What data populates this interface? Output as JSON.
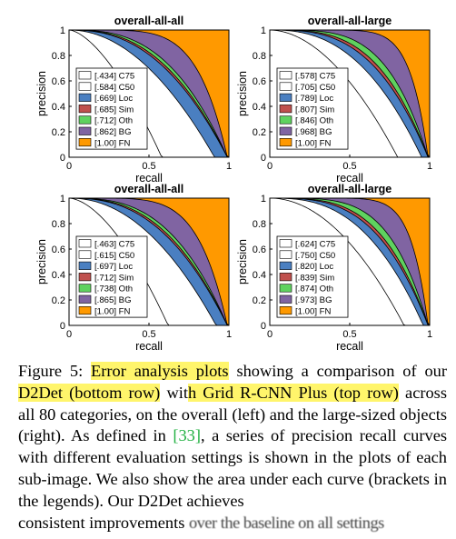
{
  "chart_data": [
    {
      "type": "area",
      "title": "overall-all-all",
      "xlabel": "recall",
      "ylabel": "precision",
      "xlim": [
        0,
        1
      ],
      "ylim": [
        0,
        1
      ],
      "xticks": [
        "0",
        "0.5",
        "1"
      ],
      "yticks": [
        "0",
        "0.2",
        "0.4",
        "0.6",
        "0.8",
        "1"
      ],
      "legend_position": "left-middle",
      "series": [
        {
          "name": "[.434] C75",
          "value": 0.434,
          "color": "#ffffff",
          "recall_end": 0.58,
          "shape": 1.6
        },
        {
          "name": "[.584] C50",
          "value": 0.584,
          "color": "#ffffff",
          "recall_end": 0.91,
          "shape": 2.0
        },
        {
          "name": "[.669] Loc",
          "value": 0.669,
          "color": "#4a7fc1",
          "recall_end": 0.99,
          "shape": 2.4
        },
        {
          "name": "[.685] Sim",
          "value": 0.685,
          "color": "#c0504d",
          "recall_end": 0.99,
          "shape": 2.55
        },
        {
          "name": "[.712] Oth",
          "value": 0.712,
          "color": "#5fd25f",
          "recall_end": 0.99,
          "shape": 2.8
        },
        {
          "name": "[.862] BG",
          "value": 0.862,
          "color": "#8064a2",
          "recall_end": 0.99,
          "shape": 5.5
        },
        {
          "name": "[1.00] FN",
          "value": 1.0,
          "color": "#ff9900",
          "recall_end": 1.0,
          "shape": 0
        }
      ]
    },
    {
      "type": "area",
      "title": "overall-all-large",
      "xlabel": "recall",
      "ylabel": "precision",
      "xlim": [
        0,
        1
      ],
      "ylim": [
        0,
        1
      ],
      "xticks": [
        "0",
        "0.5",
        "1"
      ],
      "yticks": [
        "0",
        "0.2",
        "0.4",
        "0.6",
        "0.8",
        "1"
      ],
      "legend_position": "left-middle",
      "series": [
        {
          "name": "[.578] C75",
          "value": 0.578,
          "color": "#ffffff",
          "recall_end": 0.8,
          "shape": 1.9
        },
        {
          "name": "[.705] C50",
          "value": 0.705,
          "color": "#ffffff",
          "recall_end": 0.95,
          "shape": 2.5
        },
        {
          "name": "[.789] Loc",
          "value": 0.789,
          "color": "#4a7fc1",
          "recall_end": 0.99,
          "shape": 3.0
        },
        {
          "name": "[.807] Sim",
          "value": 0.807,
          "color": "#c0504d",
          "recall_end": 0.99,
          "shape": 3.3
        },
        {
          "name": "[.846] Oth",
          "value": 0.846,
          "color": "#5fd25f",
          "recall_end": 0.99,
          "shape": 4.0
        },
        {
          "name": "[.968] BG",
          "value": 0.968,
          "color": "#8064a2",
          "recall_end": 0.99,
          "shape": 9.0
        },
        {
          "name": "[1.00] FN",
          "value": 1.0,
          "color": "#ff9900",
          "recall_end": 1.0,
          "shape": 0
        }
      ]
    },
    {
      "type": "area",
      "title": "overall-all-all",
      "xlabel": "recall",
      "ylabel": "precision",
      "xlim": [
        0,
        1
      ],
      "ylim": [
        0,
        1
      ],
      "xticks": [
        "0",
        "0.5",
        "1"
      ],
      "yticks": [
        "0",
        "0.2",
        "0.4",
        "0.6",
        "0.8",
        "1"
      ],
      "legend_position": "left-middle",
      "series": [
        {
          "name": "[.463] C75",
          "value": 0.463,
          "color": "#ffffff",
          "recall_end": 0.62,
          "shape": 1.7
        },
        {
          "name": "[.615] C50",
          "value": 0.615,
          "color": "#ffffff",
          "recall_end": 0.92,
          "shape": 2.1
        },
        {
          "name": "[.697] Loc",
          "value": 0.697,
          "color": "#4a7fc1",
          "recall_end": 0.99,
          "shape": 2.5
        },
        {
          "name": "[.712] Sim",
          "value": 0.712,
          "color": "#c0504d",
          "recall_end": 0.99,
          "shape": 2.65
        },
        {
          "name": "[.738] Oth",
          "value": 0.738,
          "color": "#5fd25f",
          "recall_end": 0.99,
          "shape": 2.9
        },
        {
          "name": "[.865] BG",
          "value": 0.865,
          "color": "#8064a2",
          "recall_end": 0.99,
          "shape": 5.6
        },
        {
          "name": "[1.00] FN",
          "value": 1.0,
          "color": "#ff9900",
          "recall_end": 1.0,
          "shape": 0
        }
      ]
    },
    {
      "type": "area",
      "title": "overall-all-large",
      "xlabel": "recall",
      "ylabel": "precision",
      "xlim": [
        0,
        1
      ],
      "ylim": [
        0,
        1
      ],
      "xticks": [
        "0",
        "0.5",
        "1"
      ],
      "yticks": [
        "0",
        "0.2",
        "0.4",
        "0.6",
        "0.8",
        "1"
      ],
      "legend_position": "left-middle",
      "series": [
        {
          "name": "[.624] C75",
          "value": 0.624,
          "color": "#ffffff",
          "recall_end": 0.84,
          "shape": 2.0
        },
        {
          "name": "[.750] C50",
          "value": 0.75,
          "color": "#ffffff",
          "recall_end": 0.96,
          "shape": 2.7
        },
        {
          "name": "[.820] Loc",
          "value": 0.82,
          "color": "#4a7fc1",
          "recall_end": 0.99,
          "shape": 3.2
        },
        {
          "name": "[.839] Sim",
          "value": 0.839,
          "color": "#c0504d",
          "recall_end": 0.99,
          "shape": 3.5
        },
        {
          "name": "[.874] Oth",
          "value": 0.874,
          "color": "#5fd25f",
          "recall_end": 0.99,
          "shape": 4.3
        },
        {
          "name": "[.973] BG",
          "value": 0.973,
          "color": "#8064a2",
          "recall_end": 0.99,
          "shape": 9.5
        },
        {
          "name": "[1.00] FN",
          "value": 1.0,
          "color": "#ff9900",
          "recall_end": 1.0,
          "shape": 0
        }
      ]
    }
  ],
  "caption": {
    "label": "Figure 5:",
    "hl1": "Error analysis plots",
    "t1": "showing a comparison of our",
    "hl2": "D2Det (bottom row)",
    "t2": "wit",
    "hl3": "h Grid R-CNN Plus (top row)",
    "t3": "across all 80 categories, on the overall (left) and the large-sized objects (right). As defined in",
    "ref_open": "[",
    "ref": "33",
    "ref_close": "]",
    "t4": ", a series of precision recall curves with different evaluation settings is shown in the plots of each sub-image. We also show the area under each curve (brackets in the legends). Our D2Det achieves",
    "t5": "consistent improvements",
    "t5_blurred": "over the baseline on all settings"
  }
}
